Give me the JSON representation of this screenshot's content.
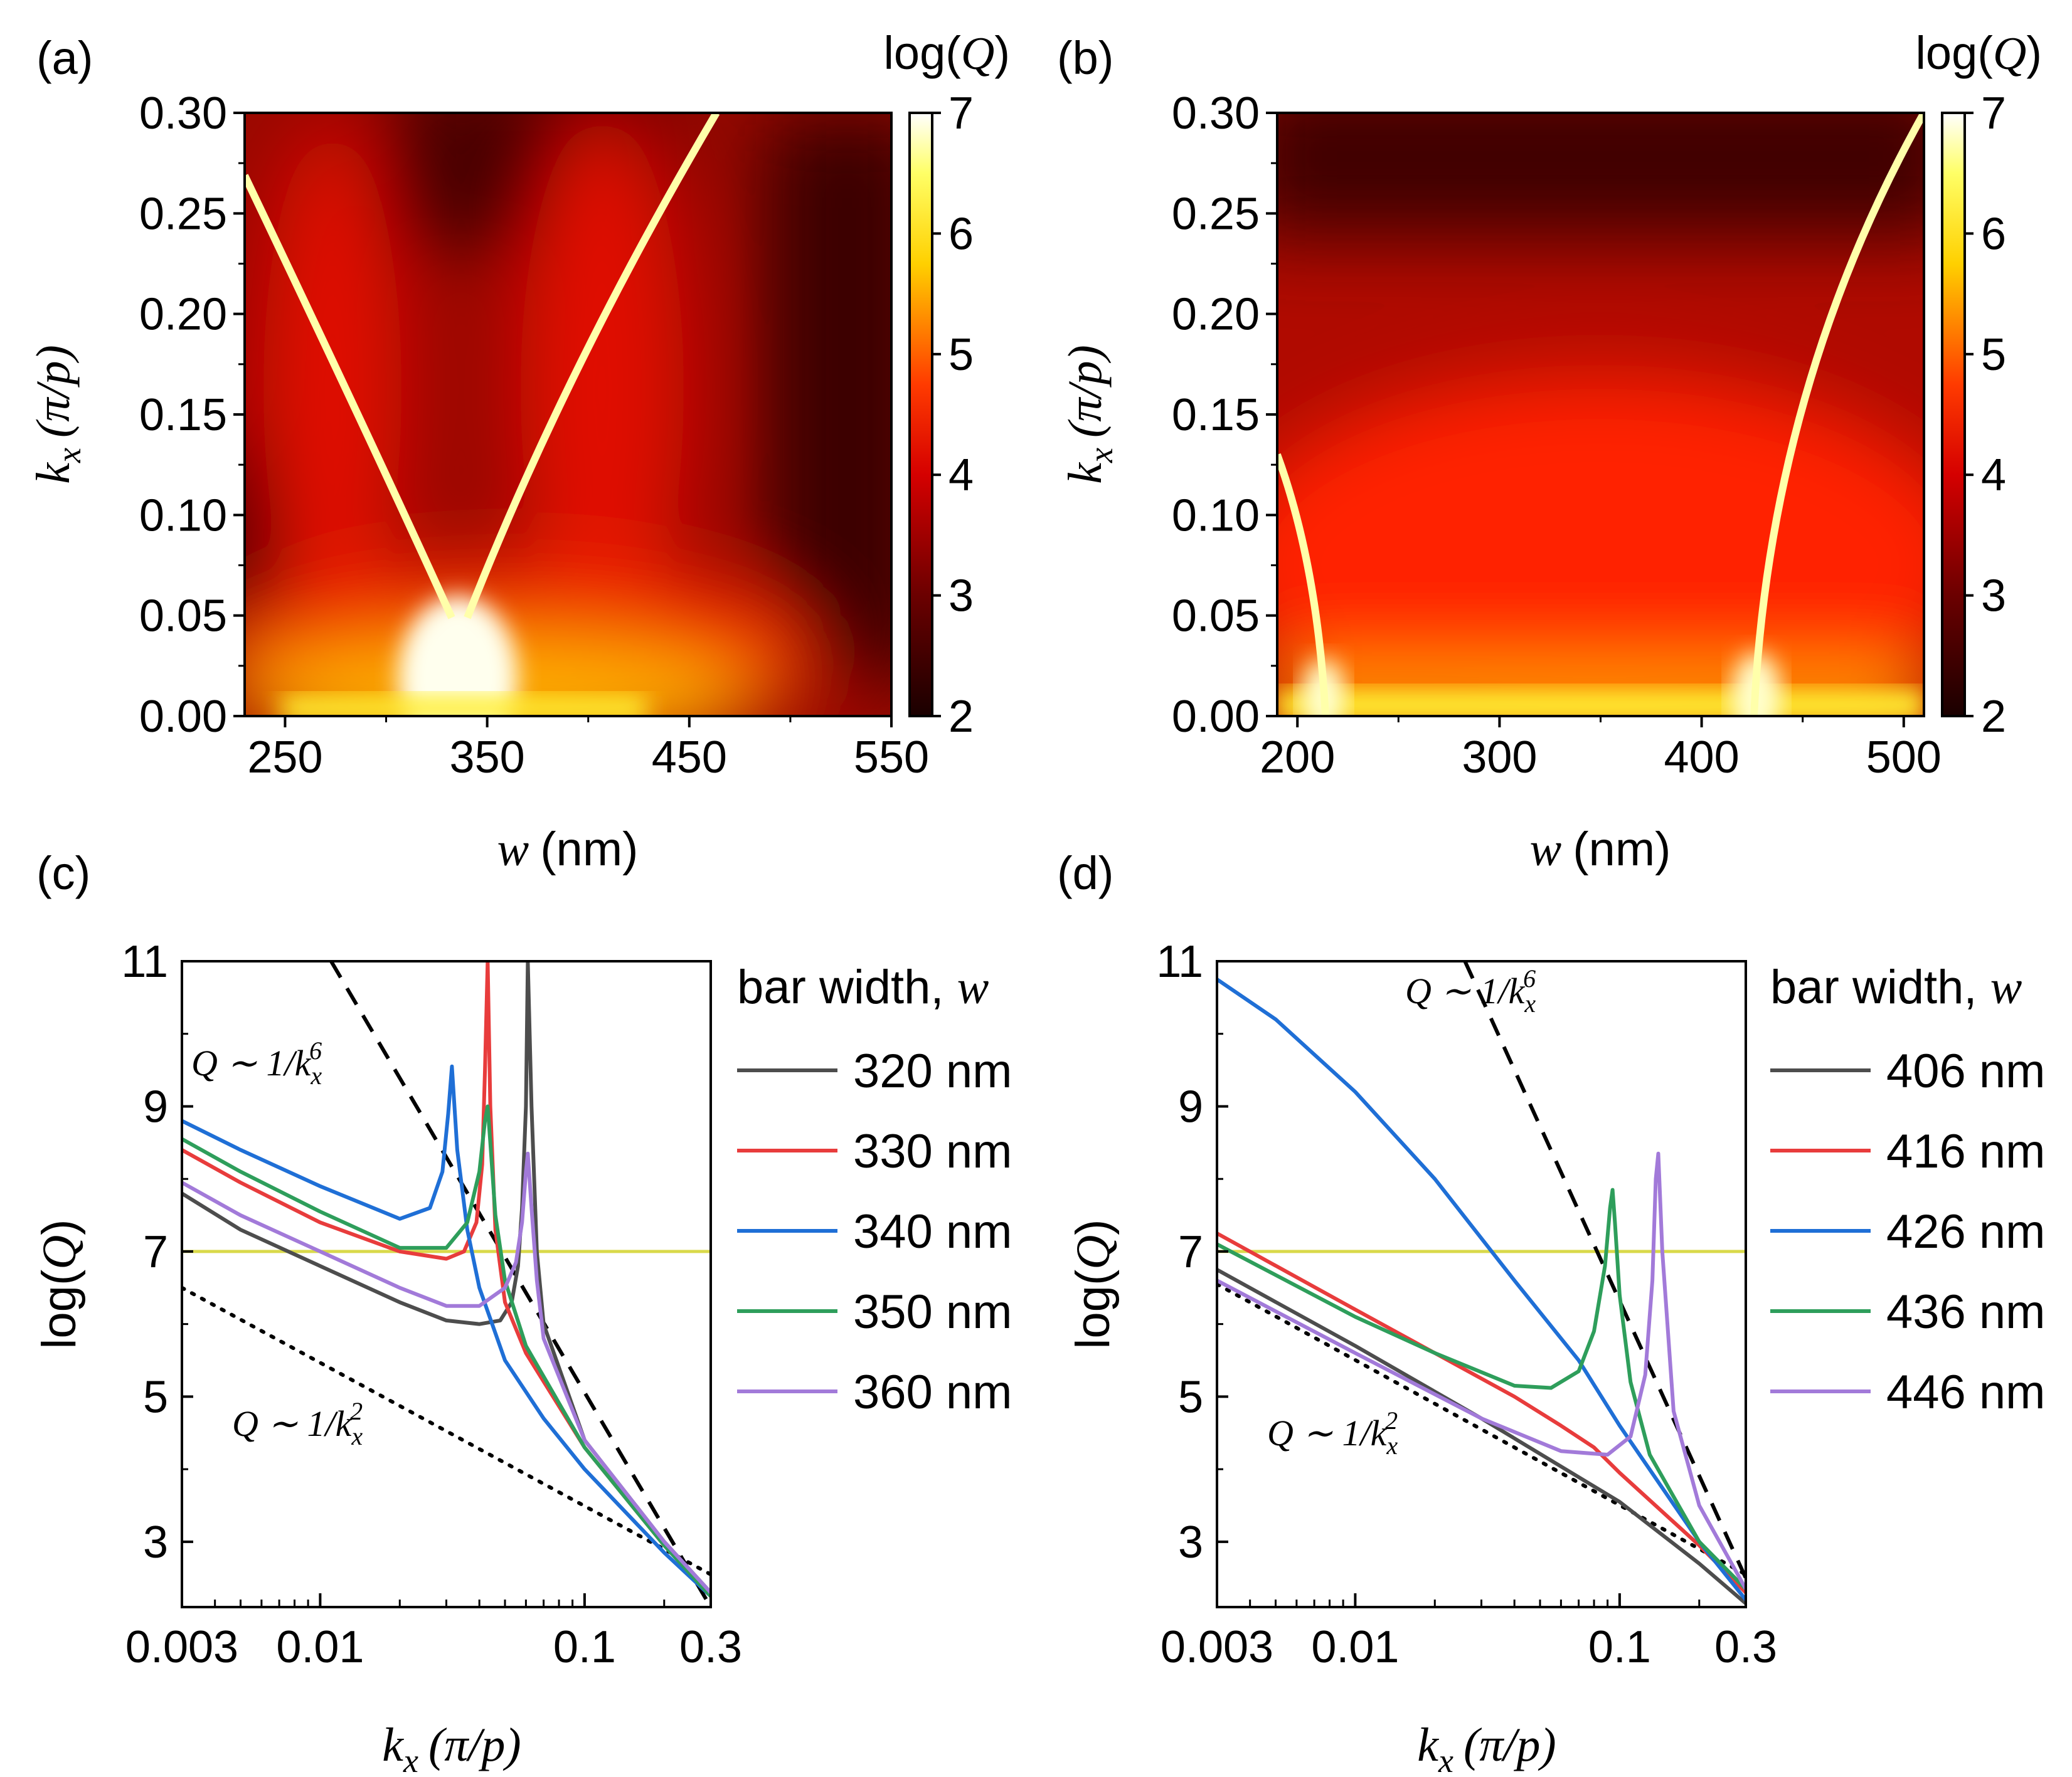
{
  "chart_data": [
    {
      "panel": "(a)",
      "type": "heatmap",
      "xlabel": {
        "var": "w",
        "unit": "(nm)"
      },
      "ylabel": {
        "var": "k",
        "sub": "x",
        "unit": "(π/p)"
      },
      "xlim": [
        230,
        550
      ],
      "ylim": [
        0,
        0.3
      ],
      "xticks": [
        250,
        350,
        450,
        550
      ],
      "yticks": [
        "0.00",
        "0.05",
        "0.10",
        "0.15",
        "0.20",
        "0.25",
        "0.30"
      ],
      "colorbar": {
        "label": "log(Q)",
        "range": [
          2,
          7
        ],
        "ticks": [
          2,
          3,
          4,
          5,
          6,
          7
        ],
        "colormap": "hot"
      },
      "bright_bands": [
        {
          "name": "left-branch",
          "w": [
            230,
            338
          ],
          "kx": [
            0.27,
            0.04
          ]
        },
        {
          "name": "right-branch",
          "w": [
            342,
            468
          ],
          "kx": [
            0.04,
            0.3
          ]
        },
        {
          "name": "bic-bright-region",
          "w_center": 340,
          "kx_max": 0.04
        }
      ]
    },
    {
      "panel": "(b)",
      "type": "heatmap",
      "xlabel": {
        "var": "w",
        "unit": "(nm)"
      },
      "ylabel": {
        "var": "k",
        "sub": "x",
        "unit": "(π/p)"
      },
      "xlim": [
        190,
        510
      ],
      "ylim": [
        0,
        0.3
      ],
      "xticks": [
        200,
        300,
        400,
        500
      ],
      "yticks": [
        "0.00",
        "0.05",
        "0.10",
        "0.15",
        "0.20",
        "0.25",
        "0.30"
      ],
      "colorbar": {
        "label": "log(Q)",
        "range": [
          2,
          7
        ],
        "ticks": [
          2,
          3,
          4,
          5,
          6,
          7
        ],
        "colormap": "hot"
      },
      "bright_bands": [
        {
          "name": "left-branch",
          "w": [
            190,
            213
          ],
          "kx": [
            0.13,
            0.0
          ]
        },
        {
          "name": "right-branch",
          "w": [
            423,
            510
          ],
          "kx": [
            0.0,
            0.3
          ]
        }
      ]
    },
    {
      "panel": "(c)",
      "type": "line",
      "xscale": "log",
      "xlabel": {
        "var": "k",
        "sub": "x",
        "unit": "(π/p)"
      },
      "ylabel": "log(Q)",
      "xlim": [
        0.003,
        0.3
      ],
      "ylim": [
        2.1,
        11
      ],
      "xticks": [
        "0.003",
        "0.01",
        "0.1",
        "0.3"
      ],
      "yticks": [
        3,
        5,
        7,
        9,
        11
      ],
      "legend": {
        "title": "bar width, w",
        "position": "right-outside"
      },
      "reference_line": {
        "y": 7,
        "color": "#d9d94a"
      },
      "guides": [
        {
          "label": "Q ~ 1/k_x^6",
          "style": "dashed",
          "x": [
            0.011,
            0.3
          ],
          "y": [
            11,
            2.1
          ]
        },
        {
          "label": "Q ~ 1/k_x^2",
          "style": "dotted",
          "x": [
            0.003,
            0.3
          ],
          "y": [
            6.5,
            2.55
          ]
        }
      ],
      "series": [
        {
          "name": "320 nm",
          "color": "#4d4d4d",
          "x": [
            0.003,
            0.005,
            0.01,
            0.02,
            0.03,
            0.04,
            0.048,
            0.053,
            0.056,
            0.058,
            0.06,
            0.061,
            0.063,
            0.066,
            0.07,
            0.1,
            0.2,
            0.3
          ],
          "y": [
            7.8,
            7.3,
            6.8,
            6.3,
            6.05,
            6.0,
            6.05,
            6.3,
            6.8,
            7.6,
            9.0,
            11.0,
            9.0,
            7.0,
            6.0,
            4.4,
            3.0,
            2.3
          ]
        },
        {
          "name": "330 nm",
          "color": "#e83c3c",
          "x": [
            0.003,
            0.005,
            0.01,
            0.02,
            0.03,
            0.035,
            0.039,
            0.041,
            0.042,
            0.043,
            0.044,
            0.046,
            0.05,
            0.06,
            0.1,
            0.2,
            0.3
          ],
          "y": [
            8.4,
            7.95,
            7.4,
            7.0,
            6.9,
            7.0,
            7.4,
            8.2,
            9.5,
            11.0,
            9.0,
            7.3,
            6.3,
            5.6,
            4.3,
            2.95,
            2.25
          ]
        },
        {
          "name": "340 nm",
          "color": "#1f6fd6",
          "x": [
            0.003,
            0.005,
            0.01,
            0.02,
            0.026,
            0.029,
            0.0305,
            0.0315,
            0.033,
            0.036,
            0.04,
            0.05,
            0.07,
            0.1,
            0.2,
            0.3
          ],
          "y": [
            8.8,
            8.4,
            7.9,
            7.45,
            7.6,
            8.1,
            8.9,
            9.55,
            8.4,
            7.3,
            6.5,
            5.5,
            4.7,
            4.0,
            2.85,
            2.25
          ]
        },
        {
          "name": "350 nm",
          "color": "#2e9e5b",
          "x": [
            0.003,
            0.005,
            0.01,
            0.02,
            0.03,
            0.036,
            0.04,
            0.042,
            0.043,
            0.044,
            0.046,
            0.05,
            0.06,
            0.1,
            0.2,
            0.3
          ],
          "y": [
            8.55,
            8.1,
            7.55,
            7.05,
            7.05,
            7.4,
            8.1,
            8.8,
            9.0,
            8.5,
            7.5,
            6.6,
            5.7,
            4.3,
            2.95,
            2.25
          ]
        },
        {
          "name": "360 nm",
          "color": "#a27ad9",
          "x": [
            0.003,
            0.005,
            0.01,
            0.02,
            0.03,
            0.04,
            0.05,
            0.055,
            0.058,
            0.06,
            0.061,
            0.063,
            0.066,
            0.07,
            0.1,
            0.2,
            0.3
          ],
          "y": [
            7.95,
            7.5,
            7.0,
            6.5,
            6.25,
            6.25,
            6.5,
            6.85,
            7.4,
            8.1,
            8.35,
            7.6,
            6.6,
            5.8,
            4.4,
            3.0,
            2.3
          ]
        }
      ]
    },
    {
      "panel": "(d)",
      "type": "line",
      "xscale": "log",
      "xlabel": {
        "var": "k",
        "sub": "x",
        "unit": "(π/p)"
      },
      "ylabel": "log(Q)",
      "xlim": [
        0.003,
        0.3
      ],
      "ylim": [
        2.1,
        11
      ],
      "xticks": [
        "0.003",
        "0.01",
        "0.1",
        "0.3"
      ],
      "yticks": [
        3,
        5,
        7,
        9,
        11
      ],
      "legend": {
        "title": "bar width, w",
        "position": "right-outside"
      },
      "reference_line": {
        "y": 7,
        "color": "#d9d94a"
      },
      "guides": [
        {
          "label": "Q ~ 1/k_x^6",
          "style": "dashed",
          "x": [
            0.026,
            0.3
          ],
          "y": [
            11,
            2.5
          ]
        },
        {
          "label": "Q ~ 1/k_x^2",
          "style": "dotted",
          "x": [
            0.003,
            0.3
          ],
          "y": [
            6.55,
            2.55
          ]
        }
      ],
      "series": [
        {
          "name": "406 nm",
          "color": "#4d4d4d",
          "x": [
            0.003,
            0.01,
            0.03,
            0.1,
            0.2,
            0.3
          ],
          "y": [
            6.75,
            5.7,
            4.7,
            3.55,
            2.7,
            2.15
          ]
        },
        {
          "name": "416 nm",
          "color": "#e83c3c",
          "x": [
            0.003,
            0.01,
            0.02,
            0.04,
            0.06,
            0.08,
            0.1,
            0.2,
            0.3
          ],
          "y": [
            7.25,
            6.2,
            5.6,
            5.0,
            4.6,
            4.3,
            3.95,
            2.95,
            2.3
          ]
        },
        {
          "name": "426 nm",
          "color": "#1f6fd6",
          "x": [
            0.003,
            0.005,
            0.01,
            0.02,
            0.04,
            0.07,
            0.1,
            0.2,
            0.3
          ],
          "y": [
            10.75,
            10.2,
            9.2,
            8.0,
            6.6,
            5.5,
            4.6,
            3.0,
            2.2
          ]
        },
        {
          "name": "436 nm",
          "color": "#2e9e5b",
          "x": [
            0.003,
            0.01,
            0.02,
            0.04,
            0.055,
            0.07,
            0.08,
            0.088,
            0.092,
            0.094,
            0.096,
            0.1,
            0.11,
            0.13,
            0.2,
            0.3
          ],
          "y": [
            7.1,
            6.1,
            5.6,
            5.15,
            5.12,
            5.35,
            5.9,
            6.8,
            7.6,
            7.85,
            7.4,
            6.4,
            5.2,
            4.2,
            3.0,
            2.35
          ]
        },
        {
          "name": "446 nm",
          "color": "#a27ad9",
          "x": [
            0.003,
            0.01,
            0.03,
            0.06,
            0.09,
            0.11,
            0.125,
            0.133,
            0.137,
            0.14,
            0.145,
            0.16,
            0.2,
            0.3
          ],
          "y": [
            6.6,
            5.6,
            4.7,
            4.25,
            4.2,
            4.45,
            5.3,
            6.6,
            8.0,
            8.35,
            7.0,
            4.8,
            3.5,
            2.35
          ]
        }
      ]
    }
  ],
  "labels": {
    "panels": [
      "(a)",
      "(b)",
      "(c)",
      "(d)"
    ],
    "colorbar_title": "log(",
    "colorbar_var": "Q",
    "colorbar_close": ")",
    "legend_title": "bar width, ",
    "legend_var": "w",
    "guide_k6_prefix": "Q ∼ 1/k",
    "guide_k2_prefix": "Q ∼ 1/k",
    "guide_sub": "x",
    "guide_sup6": "6",
    "guide_sup2": "2",
    "log_label": "log(",
    "log_var": "Q",
    "log_close": ")"
  }
}
